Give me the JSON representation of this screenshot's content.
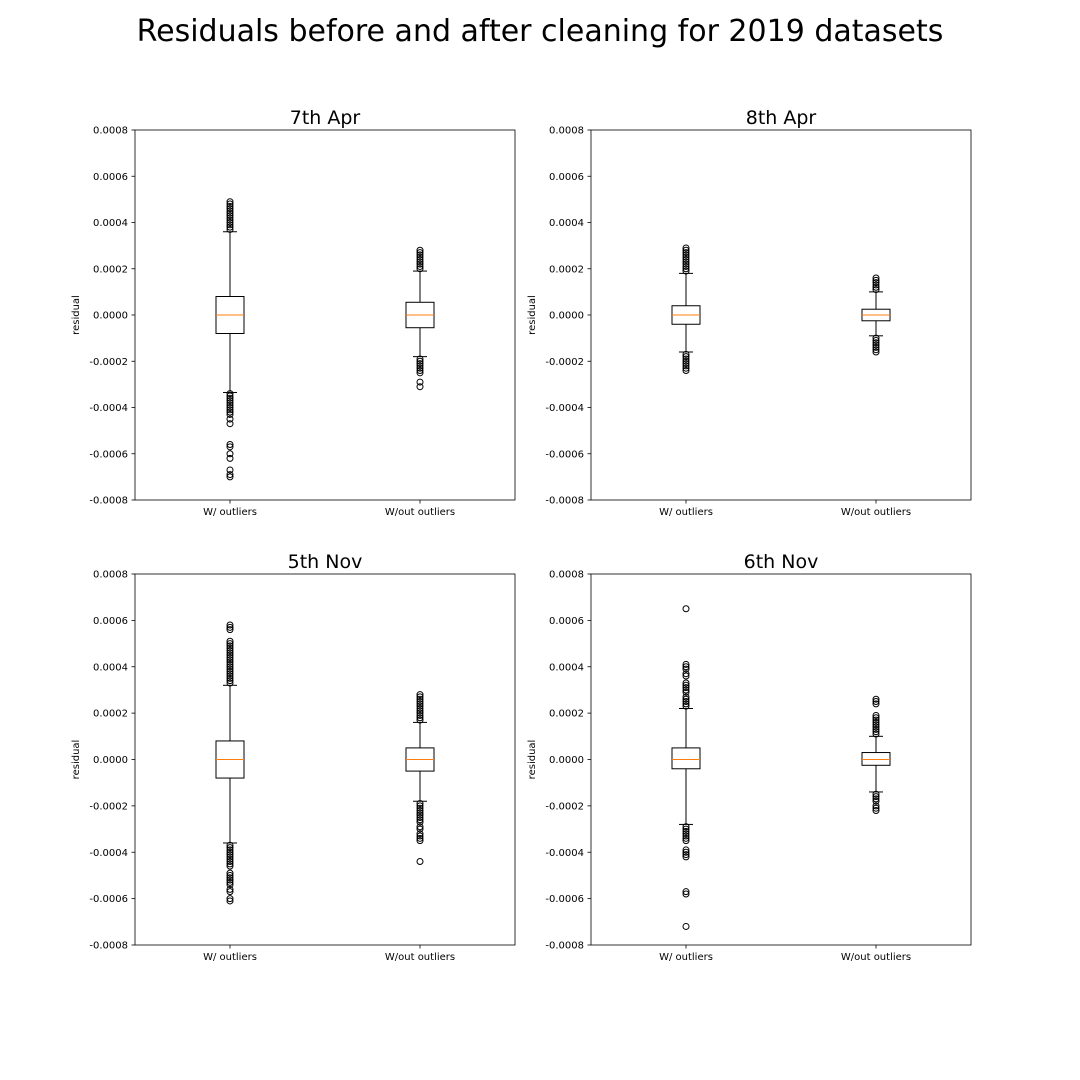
{
  "title": "Residuals before and after cleaning for 2019 datasets",
  "chart_data": [
    {
      "type": "box",
      "title": "7th Apr",
      "ylabel": "residual",
      "categories": [
        "W/ outliers",
        "W/out outliers"
      ],
      "ylim": [
        -0.0008,
        0.0008
      ],
      "yticks": [
        "0.0008",
        "0.0006",
        "0.0004",
        "0.0002",
        "0.0000",
        "-0.0002",
        "-0.0004",
        "-0.0006",
        "-0.0008"
      ],
      "boxes": [
        {
          "category": "W/ outliers",
          "whisker_low": -0.000335,
          "q1": -8e-05,
          "median": 0.0,
          "q3": 8e-05,
          "whisker_high": 0.00036,
          "outliers": [
            0.00049,
            0.00048,
            0.00047,
            0.00046,
            0.00045,
            0.00044,
            0.00043,
            0.00042,
            0.00041,
            0.0004,
            0.00039,
            0.00038,
            0.00037,
            -0.00034,
            -0.00035,
            -0.00036,
            -0.00037,
            -0.00038,
            -0.00039,
            -0.0004,
            -0.00041,
            -0.00042,
            -0.00043,
            -0.00045,
            -0.00047,
            -0.00056,
            -0.00057,
            -0.0006,
            -0.00062,
            -0.00067,
            -0.00069,
            -0.0007
          ]
        },
        {
          "category": "W/out outliers",
          "whisker_low": -0.00018,
          "q1": -5.5e-05,
          "median": 0.0,
          "q3": 5.5e-05,
          "whisker_high": 0.00019,
          "outliers": [
            0.00028,
            0.00027,
            0.00026,
            0.00025,
            0.00024,
            0.00023,
            0.00022,
            0.00021,
            0.0002,
            -0.00019,
            -0.0002,
            -0.00021,
            -0.00022,
            -0.00023,
            -0.00024,
            -0.00025,
            -0.00029,
            -0.00031
          ]
        }
      ]
    },
    {
      "type": "box",
      "title": "8th Apr",
      "ylabel": "residual",
      "categories": [
        "W/ outliers",
        "W/out outliers"
      ],
      "ylim": [
        -0.0008,
        0.0008
      ],
      "yticks": [
        "0.0008",
        "0.0006",
        "0.0004",
        "0.0002",
        "0.0000",
        "-0.0002",
        "-0.0004",
        "-0.0006",
        "-0.0008"
      ],
      "boxes": [
        {
          "category": "W/ outliers",
          "whisker_low": -0.00016,
          "q1": -4e-05,
          "median": 0.0,
          "q3": 4e-05,
          "whisker_high": 0.00018,
          "outliers": [
            0.00029,
            0.00028,
            0.00027,
            0.00026,
            0.00025,
            0.00024,
            0.00023,
            0.00022,
            0.00021,
            0.0002,
            0.00019,
            -0.00017,
            -0.00018,
            -0.00019,
            -0.0002,
            -0.00021,
            -0.00022,
            -0.00023,
            -0.00024
          ]
        },
        {
          "category": "W/out outliers",
          "whisker_low": -9e-05,
          "q1": -2.5e-05,
          "median": 0.0,
          "q3": 2.5e-05,
          "whisker_high": 0.0001,
          "outliers": [
            0.00016,
            0.00015,
            0.00014,
            0.00013,
            0.00012,
            0.00011,
            -0.0001,
            -0.00011,
            -0.00012,
            -0.00013,
            -0.00014,
            -0.00015,
            -0.00016
          ]
        }
      ]
    },
    {
      "type": "box",
      "title": "5th Nov",
      "ylabel": "residual",
      "categories": [
        "W/ outliers",
        "W/out outliers"
      ],
      "ylim": [
        -0.0008,
        0.0008
      ],
      "yticks": [
        "0.0008",
        "0.0006",
        "0.0004",
        "0.0002",
        "0.0000",
        "-0.0002",
        "-0.0004",
        "-0.0006",
        "-0.0008"
      ],
      "boxes": [
        {
          "category": "W/ outliers",
          "whisker_low": -0.00036,
          "q1": -8e-05,
          "median": 0.0,
          "q3": 8e-05,
          "whisker_high": 0.00032,
          "outliers": [
            0.00058,
            0.00057,
            0.00056,
            0.00051,
            0.0005,
            0.00049,
            0.00048,
            0.00047,
            0.00046,
            0.00045,
            0.00044,
            0.00043,
            0.00042,
            0.00041,
            0.0004,
            0.00039,
            0.00038,
            0.00037,
            0.00036,
            0.00035,
            0.00034,
            0.00033,
            -0.00037,
            -0.00038,
            -0.00039,
            -0.0004,
            -0.00041,
            -0.00042,
            -0.00043,
            -0.00044,
            -0.00045,
            -0.00046,
            -0.00049,
            -0.0005,
            -0.00051,
            -0.00052,
            -0.00053,
            -0.00054,
            -0.00056,
            -0.00057,
            -0.0006,
            -0.00061
          ]
        },
        {
          "category": "W/out outliers",
          "whisker_low": -0.00018,
          "q1": -5e-05,
          "median": 0.0,
          "q3": 5e-05,
          "whisker_high": 0.00016,
          "outliers": [
            0.00028,
            0.00027,
            0.00026,
            0.00025,
            0.00024,
            0.00023,
            0.00022,
            0.00021,
            0.0002,
            0.00019,
            0.00018,
            0.00017,
            -0.00019,
            -0.0002,
            -0.00021,
            -0.00022,
            -0.00023,
            -0.00024,
            -0.00025,
            -0.00026,
            -0.00027,
            -0.00029,
            -0.0003,
            -0.00032,
            -0.00033,
            -0.00034,
            -0.00035,
            -0.00044
          ]
        }
      ]
    },
    {
      "type": "box",
      "title": "6th Nov",
      "ylabel": "residual",
      "categories": [
        "W/ outliers",
        "W/out outliers"
      ],
      "ylim": [
        -0.0008,
        0.0008
      ],
      "yticks": [
        "0.0008",
        "0.0006",
        "0.0004",
        "0.0002",
        "0.0000",
        "-0.0002",
        "-0.0004",
        "-0.0006",
        "-0.0008"
      ],
      "boxes": [
        {
          "category": "W/ outliers",
          "whisker_low": -0.00028,
          "q1": -4e-05,
          "median": 0.0,
          "q3": 5e-05,
          "whisker_high": 0.00022,
          "outliers": [
            0.00065,
            0.00041,
            0.0004,
            0.00039,
            0.00037,
            0.00036,
            0.00033,
            0.00032,
            0.00031,
            0.0003,
            0.00029,
            0.00027,
            0.00026,
            0.00025,
            0.00024,
            0.00023,
            -0.00029,
            -0.0003,
            -0.00031,
            -0.00032,
            -0.00033,
            -0.00034,
            -0.00035,
            -0.00039,
            -0.0004,
            -0.00041,
            -0.00042,
            -0.00057,
            -0.00058,
            -0.00072
          ]
        },
        {
          "category": "W/out outliers",
          "whisker_low": -0.00014,
          "q1": -2.5e-05,
          "median": 0.0,
          "q3": 3e-05,
          "whisker_high": 0.0001,
          "outliers": [
            0.00026,
            0.00025,
            0.00024,
            0.00019,
            0.00018,
            0.00017,
            0.00016,
            0.00015,
            0.00014,
            0.00013,
            0.00012,
            0.00011,
            -0.00015,
            -0.00016,
            -0.00017,
            -0.00018,
            -0.0002,
            -0.00021,
            -0.00022
          ]
        }
      ]
    }
  ]
}
